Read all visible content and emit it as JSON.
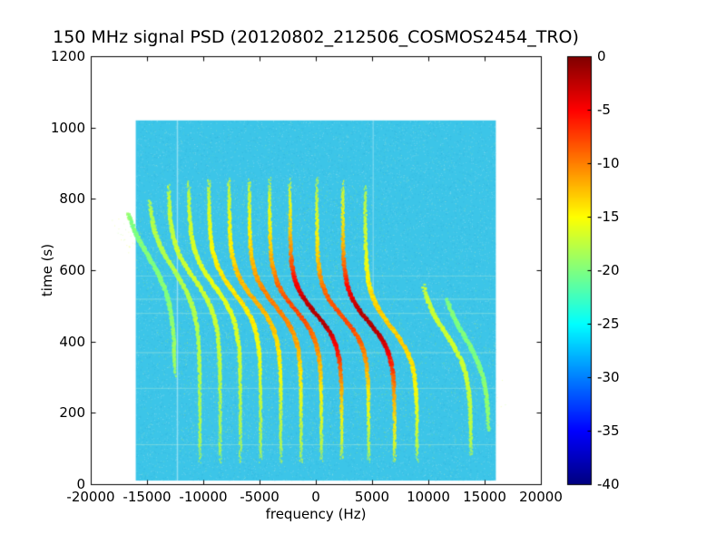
{
  "chart_data": {
    "type": "heatmap",
    "title": "150 MHz signal PSD (20120802_212506_COSMOS2454_TRO)",
    "xlabel": "frequency (Hz)",
    "ylabel": "time (s)",
    "xlim": [
      -20000,
      20000
    ],
    "ylim": [
      0,
      1200
    ],
    "xticks": [
      -20000,
      -15000,
      -10000,
      -5000,
      0,
      5000,
      10000,
      15000,
      20000
    ],
    "yticks": [
      0,
      200,
      400,
      600,
      800,
      1000,
      1200
    ],
    "grid": false,
    "colorbar": {
      "colormap": "jet",
      "min": -40,
      "max": 0,
      "tick_values": [
        0,
        -5,
        -10,
        -15,
        -20,
        -25,
        -30,
        -35,
        -40
      ],
      "position": "right"
    },
    "background_level_db": -28,
    "data_extent": {
      "freq_hz": [
        -16000,
        16000
      ],
      "time_s": [
        10,
        1020
      ]
    },
    "traces": [
      {
        "f_mid_hz": -14900,
        "half_sweep_hz": 2400,
        "t_mid_s": 640,
        "tau_s": 130,
        "peak_db": -20,
        "t_range_s": [
          300,
          760
        ]
      },
      {
        "f_mid_hz": -12600,
        "half_sweep_hz": 2300,
        "t_mid_s": 600,
        "tau_s": 115,
        "peak_db": -18,
        "t_range_s": [
          60,
          800
        ]
      },
      {
        "f_mid_hz": -10800,
        "half_sweep_hz": 2300,
        "t_mid_s": 575,
        "tau_s": 105,
        "peak_db": -17,
        "t_range_s": [
          60,
          840
        ]
      },
      {
        "f_mid_hz": -9000,
        "half_sweep_hz": 2300,
        "t_mid_s": 555,
        "tau_s": 100,
        "peak_db": -16,
        "t_range_s": [
          60,
          850
        ]
      },
      {
        "f_mid_hz": -7200,
        "half_sweep_hz": 2300,
        "t_mid_s": 535,
        "tau_s": 95,
        "peak_db": -14,
        "t_range_s": [
          60,
          855
        ]
      },
      {
        "f_mid_hz": -5400,
        "half_sweep_hz": 2300,
        "t_mid_s": 515,
        "tau_s": 92,
        "peak_db": -12,
        "t_range_s": [
          60,
          860
        ]
      },
      {
        "f_mid_hz": -3600,
        "half_sweep_hz": 2300,
        "t_mid_s": 500,
        "tau_s": 90,
        "peak_db": -10,
        "t_range_s": [
          60,
          860
        ]
      },
      {
        "f_mid_hz": -1800,
        "half_sweep_hz": 2300,
        "t_mid_s": 488,
        "tau_s": 88,
        "peak_db": -8,
        "t_range_s": [
          60,
          860
        ]
      },
      {
        "f_mid_hz": 0,
        "half_sweep_hz": 2300,
        "t_mid_s": 478,
        "tau_s": 86,
        "peak_db": -2,
        "t_range_s": [
          60,
          860
        ]
      },
      {
        "f_mid_hz": 2400,
        "half_sweep_hz": 2300,
        "t_mid_s": 468,
        "tau_s": 86,
        "peak_db": -8,
        "t_range_s": [
          60,
          860
        ]
      },
      {
        "f_mid_hz": 4700,
        "half_sweep_hz": 2300,
        "t_mid_s": 455,
        "tau_s": 88,
        "peak_db": -2,
        "t_range_s": [
          60,
          855
        ]
      },
      {
        "f_mid_hz": 6700,
        "half_sweep_hz": 2300,
        "t_mid_s": 440,
        "tau_s": 95,
        "peak_db": -13,
        "t_range_s": [
          60,
          840
        ]
      },
      {
        "f_mid_hz": 11500,
        "half_sweep_hz": 2300,
        "t_mid_s": 425,
        "tau_s": 110,
        "peak_db": -17,
        "t_range_s": [
          80,
          560
        ]
      },
      {
        "f_mid_hz": 13200,
        "half_sweep_hz": 2200,
        "t_mid_s": 415,
        "tau_s": 120,
        "peak_db": -20,
        "t_range_s": [
          150,
          520
        ]
      }
    ],
    "artifacts": {
      "vertical_lines": [
        {
          "f_hz": -12300,
          "t_range_s": [
            10,
            1020
          ],
          "alpha": 0.5
        },
        {
          "f_hz": 5100,
          "t_range_s": [
            520,
            1020
          ],
          "alpha": 0.3
        }
      ],
      "horizontal_lines": [
        {
          "t_s": 112,
          "alpha": 0.3
        },
        {
          "t_s": 270,
          "alpha": 0.3
        },
        {
          "t_s": 370,
          "alpha": 0.35
        },
        {
          "t_s": 480,
          "alpha": 0.3
        },
        {
          "t_s": 520,
          "alpha": 0.35
        },
        {
          "t_s": 585,
          "alpha": 0.25
        }
      ]
    }
  }
}
